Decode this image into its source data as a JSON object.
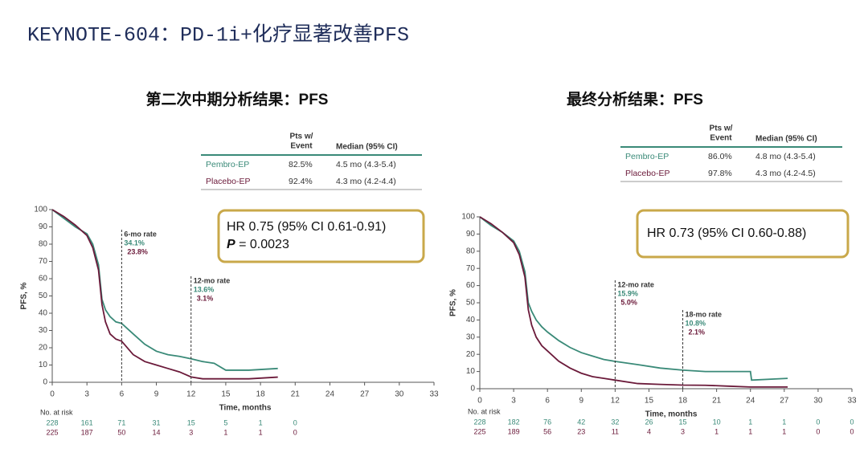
{
  "title": "KEYNOTE-604：PD-1i+化疗显著改善PFS",
  "chart_data": [
    {
      "type": "line",
      "title": "第二次中期分析结果：PFS",
      "table": {
        "pts_header": [
          "Pts w/",
          "Event"
        ],
        "median_header": "Median (95% CI)",
        "rows": [
          [
            "Pembro-EP",
            "82.5%",
            "4.5 mo (4.3-5.4)"
          ],
          [
            "Placebo-EP",
            "92.4%",
            "4.3 mo (4.2-4.4)"
          ]
        ]
      },
      "hr": "HR 0.75 (95% CI 0.61-0.91)",
      "p_symbol": "P",
      "p_text": " = 0.0023",
      "xlabel": "Time, months",
      "ylabel": "PFS, %",
      "xlim": [
        0,
        33
      ],
      "xticks": [
        0,
        3,
        6,
        9,
        12,
        15,
        18,
        21,
        24,
        27,
        30,
        33
      ],
      "ylim": [
        0,
        100
      ],
      "yticks": [
        0,
        10,
        20,
        30,
        40,
        50,
        60,
        70,
        80,
        90,
        100
      ],
      "series": [
        {
          "name": "Pembro-EP",
          "color": "#3a8a78",
          "x": [
            0,
            1,
            2,
            3,
            3.5,
            4,
            4.3,
            4.6,
            5,
            5.5,
            6,
            7,
            8,
            9,
            10,
            11,
            12,
            13,
            14,
            15,
            17,
            19.5
          ],
          "values": [
            100,
            95,
            90,
            86,
            80,
            68,
            48,
            42,
            38,
            35,
            34.1,
            28,
            22,
            18,
            16,
            15,
            13.6,
            12,
            11,
            7,
            7,
            8
          ]
        },
        {
          "name": "Placebo-EP",
          "color": "#6b1a3a",
          "x": [
            0,
            1,
            2,
            3,
            3.5,
            4,
            4.3,
            4.6,
            5,
            5.5,
            6,
            7,
            8,
            9,
            10,
            11,
            12,
            13,
            14,
            15,
            17,
            19.5
          ],
          "values": [
            100,
            96,
            91,
            85,
            78,
            65,
            45,
            35,
            28,
            25,
            23.8,
            16,
            12,
            10,
            8,
            6,
            3.1,
            2,
            2,
            2,
            2,
            3
          ]
        }
      ],
      "landmarks": [
        {
          "x": 6,
          "label": "6-mo rate",
          "values": [
            34.1,
            23.8
          ],
          "value_labels": [
            "34.1%",
            "23.8%"
          ]
        },
        {
          "x": 12,
          "label": "12-mo rate",
          "values": [
            13.6,
            3.1
          ],
          "value_labels": [
            "13.6%",
            "3.1%"
          ]
        }
      ],
      "at_risk": {
        "label": "No. at risk",
        "rows": [
          [
            228,
            161,
            71,
            31,
            15,
            5,
            1,
            0
          ],
          [
            225,
            187,
            50,
            14,
            3,
            1,
            1,
            0
          ]
        ]
      }
    },
    {
      "type": "line",
      "title": "最终分析结果：PFS",
      "table": {
        "pts_header": [
          "Pts w/",
          "Event"
        ],
        "median_header": "Median (95% CI)",
        "rows": [
          [
            "Pembro-EP",
            "86.0%",
            "4.8 mo (4.3-5.4)"
          ],
          [
            "Placebo-EP",
            "97.8%",
            "4.3 mo (4.2-4.5)"
          ]
        ]
      },
      "hr": "HR 0.73 (95% CI 0.60-0.88)",
      "xlabel": "Time, months",
      "ylabel": "PFS, %",
      "xlim": [
        0,
        33
      ],
      "xticks": [
        0,
        3,
        6,
        9,
        12,
        15,
        18,
        21,
        24,
        27,
        30,
        33
      ],
      "ylim": [
        0,
        100
      ],
      "yticks": [
        0,
        10,
        20,
        30,
        40,
        50,
        60,
        70,
        80,
        90,
        100
      ],
      "series": [
        {
          "name": "Pembro-EP",
          "color": "#3a8a78",
          "x": [
            0,
            1,
            2,
            3,
            3.5,
            4,
            4.3,
            4.6,
            5,
            5.5,
            6,
            7,
            8,
            9,
            10,
            11,
            12,
            14,
            16,
            18,
            20,
            22,
            24,
            24.1,
            27.3
          ],
          "values": [
            100,
            95,
            91,
            86,
            80,
            68,
            50,
            45,
            40,
            36,
            33,
            28,
            24,
            21,
            19,
            17,
            15.9,
            14,
            12,
            10.8,
            10,
            10,
            10,
            5,
            6
          ]
        },
        {
          "name": "Placebo-EP",
          "color": "#6b1a3a",
          "x": [
            0,
            1,
            2,
            3,
            3.5,
            4,
            4.3,
            4.6,
            5,
            5.5,
            6,
            7,
            8,
            9,
            10,
            11,
            12,
            14,
            16,
            18,
            20,
            22,
            24,
            24.1,
            27.3
          ],
          "values": [
            100,
            96,
            91,
            85,
            78,
            65,
            46,
            37,
            30,
            25,
            22,
            16,
            12,
            9,
            7,
            6,
            5,
            3,
            2.5,
            2.1,
            2,
            1.5,
            1,
            1,
            1
          ]
        }
      ],
      "landmarks": [
        {
          "x": 12,
          "label": "12-mo rate",
          "values": [
            15.9,
            5.0
          ],
          "value_labels": [
            "15.9%",
            "5.0%"
          ]
        },
        {
          "x": 18,
          "label": "18-mo rate",
          "values": [
            10.8,
            2.1
          ],
          "value_labels": [
            "10.8%",
            "2.1%"
          ]
        }
      ],
      "at_risk": {
        "label": "No. at risk",
        "rows": [
          [
            228,
            182,
            76,
            42,
            32,
            26,
            15,
            10,
            1,
            1,
            0,
            0
          ],
          [
            225,
            189,
            56,
            23,
            11,
            4,
            3,
            1,
            1,
            1,
            0,
            0
          ]
        ]
      }
    }
  ]
}
